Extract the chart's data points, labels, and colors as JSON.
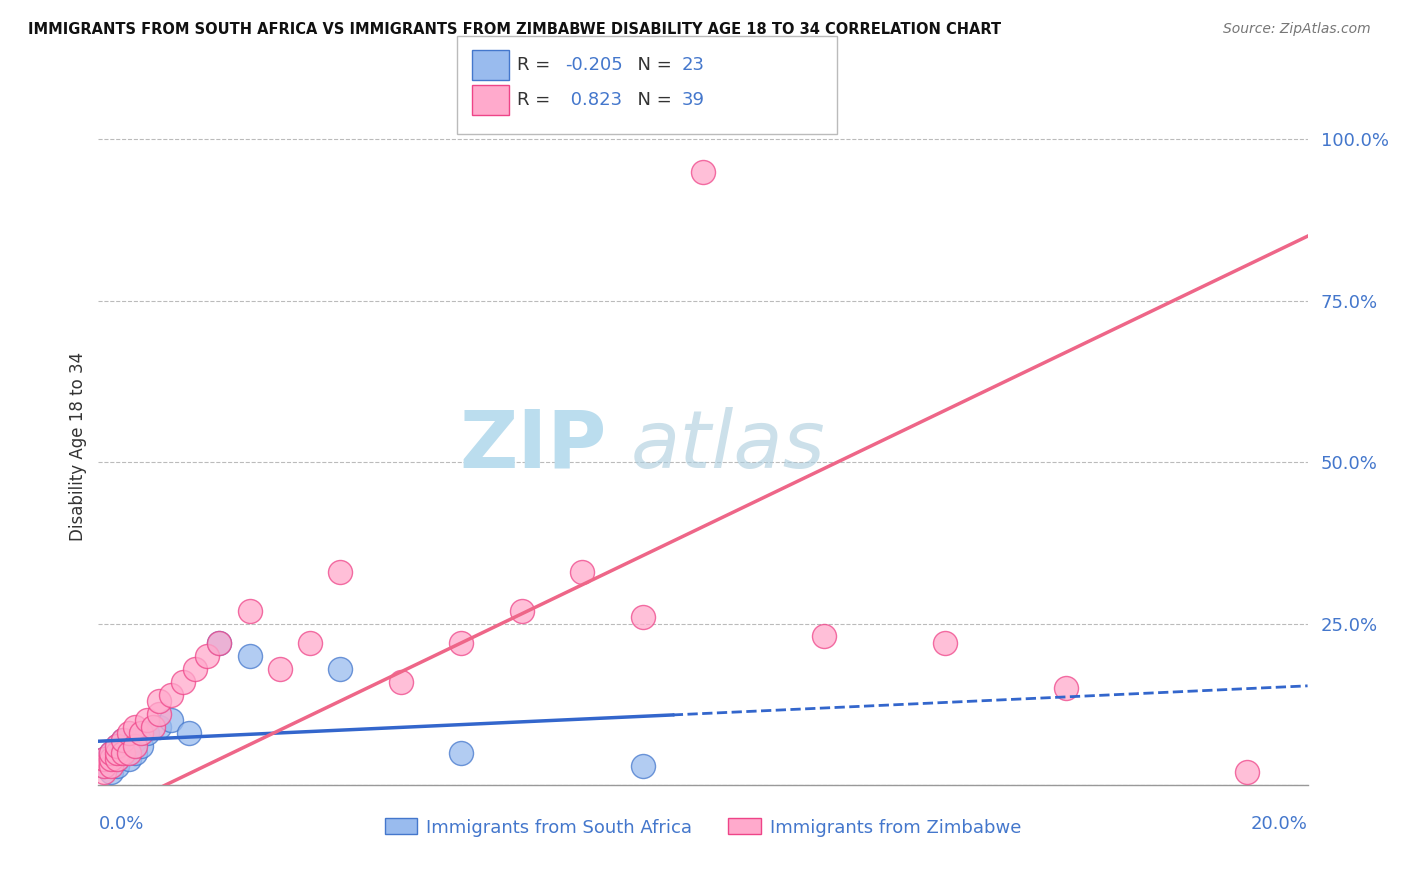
{
  "title": "IMMIGRANTS FROM SOUTH AFRICA VS IMMIGRANTS FROM ZIMBABWE DISABILITY AGE 18 TO 34 CORRELATION CHART",
  "source": "Source: ZipAtlas.com",
  "ylabel": "Disability Age 18 to 34",
  "legend_label_sa": "Immigrants from South Africa",
  "legend_label_zw": "Immigrants from Zimbabwe",
  "r_sa": -0.205,
  "n_sa": 23,
  "r_zw": 0.823,
  "n_zw": 39,
  "color_sa_fill": "#99BBEE",
  "color_sa_edge": "#4477CC",
  "color_zw_fill": "#FFAACC",
  "color_zw_edge": "#EE4488",
  "color_sa_line": "#3366CC",
  "color_zw_line": "#EE6688",
  "watermark_color": "#BBDDEE",
  "background_color": "#FFFFFF",
  "sa_x": [
    0.001,
    0.001,
    0.002,
    0.002,
    0.003,
    0.003,
    0.003,
    0.004,
    0.004,
    0.005,
    0.005,
    0.006,
    0.006,
    0.007,
    0.008,
    0.01,
    0.012,
    0.015,
    0.02,
    0.025,
    0.04,
    0.06,
    0.09
  ],
  "sa_y": [
    0.03,
    0.04,
    0.02,
    0.05,
    0.03,
    0.04,
    0.06,
    0.05,
    0.07,
    0.04,
    0.06,
    0.05,
    0.07,
    0.06,
    0.08,
    0.09,
    0.1,
    0.08,
    0.22,
    0.2,
    0.18,
    0.05,
    0.03
  ],
  "zw_x": [
    0.001,
    0.001,
    0.001,
    0.002,
    0.002,
    0.002,
    0.003,
    0.003,
    0.003,
    0.004,
    0.004,
    0.005,
    0.005,
    0.006,
    0.006,
    0.007,
    0.008,
    0.009,
    0.01,
    0.01,
    0.012,
    0.014,
    0.016,
    0.018,
    0.02,
    0.025,
    0.03,
    0.035,
    0.04,
    0.05,
    0.06,
    0.07,
    0.08,
    0.09,
    0.1,
    0.12,
    0.14,
    0.16,
    0.19
  ],
  "zw_y": [
    0.02,
    0.03,
    0.04,
    0.03,
    0.04,
    0.05,
    0.04,
    0.05,
    0.06,
    0.05,
    0.07,
    0.05,
    0.08,
    0.06,
    0.09,
    0.08,
    0.1,
    0.09,
    0.11,
    0.13,
    0.14,
    0.16,
    0.18,
    0.2,
    0.22,
    0.27,
    0.18,
    0.22,
    0.33,
    0.16,
    0.22,
    0.27,
    0.33,
    0.26,
    0.95,
    0.23,
    0.22,
    0.15,
    0.02
  ],
  "xlim": [
    0.0,
    0.2
  ],
  "ylim": [
    0.0,
    1.05
  ],
  "yticks": [
    0.0,
    0.25,
    0.5,
    0.75,
    1.0
  ],
  "ytick_labels": [
    "",
    "25.0%",
    "50.0%",
    "75.0%",
    "100.0%"
  ],
  "sa_line_solid_end": 0.095,
  "zw_intercept": -0.05,
  "zw_slope": 4.5
}
